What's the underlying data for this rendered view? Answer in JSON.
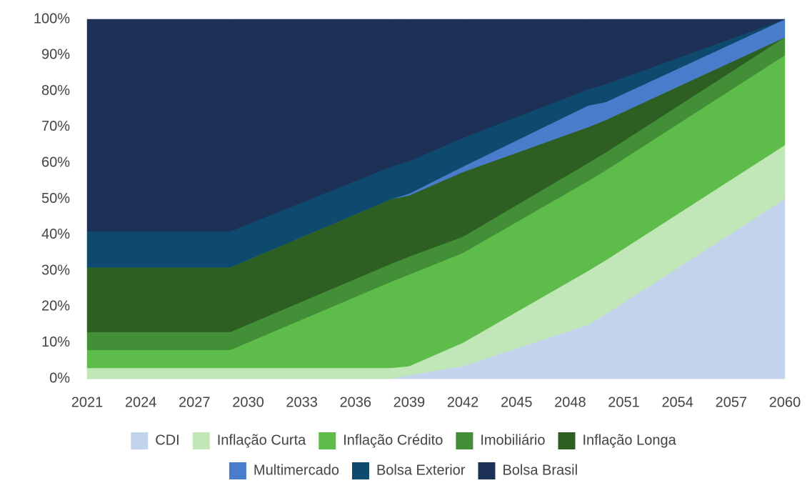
{
  "chart_data": {
    "type": "stacked-area",
    "x": [
      2021,
      2029,
      2038,
      2039,
      2042,
      2049,
      2050,
      2060
    ],
    "xlim": [
      2021,
      2060
    ],
    "xticks": [
      2021,
      2024,
      2027,
      2030,
      2033,
      2036,
      2039,
      2042,
      2045,
      2048,
      2051,
      2054,
      2057,
      2060
    ],
    "ylim": [
      0,
      100
    ],
    "yticks": [
      {
        "value": 0,
        "label": "0%"
      },
      {
        "value": 10,
        "label": "10%"
      },
      {
        "value": 20,
        "label": "20%"
      },
      {
        "value": 30,
        "label": "30%"
      },
      {
        "value": 40,
        "label": "40%"
      },
      {
        "value": 50,
        "label": "50%"
      },
      {
        "value": 60,
        "label": "60%"
      },
      {
        "value": 70,
        "label": "70%"
      },
      {
        "value": 80,
        "label": "80%"
      },
      {
        "value": 90,
        "label": "90%"
      },
      {
        "value": 100,
        "label": "100%"
      }
    ],
    "grid": true,
    "legend": "bottom",
    "series": [
      {
        "name": "CDI",
        "color": "#c3d3ec",
        "values": [
          0,
          0,
          0,
          1,
          3.5,
          15,
          18,
          50
        ]
      },
      {
        "name": "Inflação Curta",
        "color": "#c1e6b8",
        "values": [
          3,
          3,
          3,
          2.5,
          6.5,
          15,
          15,
          15
        ]
      },
      {
        "name": "Inflação Crédito",
        "color": "#5ebc4a",
        "values": [
          5,
          5,
          24,
          25.5,
          25,
          25,
          25,
          25
        ]
      },
      {
        "name": "Imobiliário",
        "color": "#438f37",
        "values": [
          5,
          5,
          5,
          5,
          4.5,
          5,
          5,
          5
        ]
      },
      {
        "name": "Inflação Longa",
        "color": "#2d5f22",
        "values": [
          18,
          18,
          18,
          17,
          18,
          10,
          9,
          0
        ]
      },
      {
        "name": "Multimercado",
        "color": "#4a7ccc",
        "values": [
          0,
          0,
          0,
          0.5,
          1.5,
          6,
          5,
          5
        ]
      },
      {
        "name": "Bolsa Exterior",
        "color": "#0d4a6e",
        "values": [
          10,
          10,
          9,
          9,
          8,
          4.5,
          5,
          0
        ]
      },
      {
        "name": "Bolsa Brasil",
        "color": "#1d3157",
        "values": [
          59,
          59,
          41,
          39.5,
          33,
          19.5,
          18,
          0
        ]
      }
    ]
  }
}
